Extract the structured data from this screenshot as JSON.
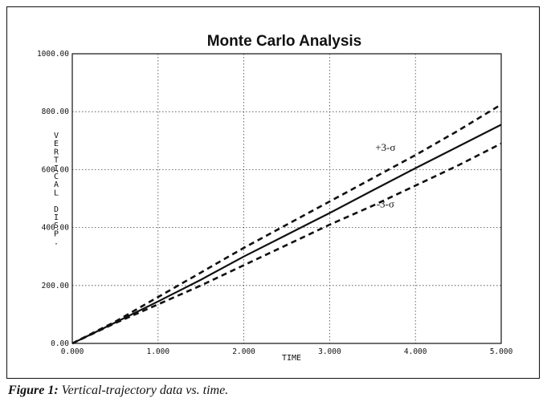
{
  "chart_data": {
    "type": "line",
    "title": "Monte Carlo Analysis",
    "xlabel": "TIME",
    "ylabel": "VERTICAL DISP.",
    "xlim": [
      0,
      5
    ],
    "ylim": [
      0,
      1000
    ],
    "x_ticks": [
      "0.000",
      "1.000",
      "2.000",
      "3.000",
      "4.000",
      "5.000"
    ],
    "y_ticks": [
      "0.00",
      "200.00",
      "400.00",
      "600.00",
      "800.00",
      "1000.00"
    ],
    "grid": true,
    "series": [
      {
        "name": "",
        "style": "solid",
        "x": [
          0,
          0.5,
          1.0,
          1.5,
          2.0,
          2.5,
          3.0,
          3.5,
          4.0,
          4.5,
          5.0
        ],
        "y": [
          0,
          72,
          145,
          220,
          300,
          375,
          450,
          528,
          605,
          680,
          755
        ]
      },
      {
        "name": "",
        "style": "dashed",
        "x": [
          0,
          0.5,
          1.0,
          1.5,
          2.0,
          2.5,
          3.0,
          3.5,
          4.0,
          4.5,
          5.0
        ],
        "y": [
          0,
          75,
          160,
          245,
          330,
          410,
          490,
          570,
          650,
          735,
          825
        ]
      },
      {
        "name": "",
        "style": "dashed",
        "x": [
          0,
          0.5,
          1.0,
          1.5,
          2.0,
          2.5,
          3.0,
          3.5,
          4.0,
          4.5,
          5.0
        ],
        "y": [
          0,
          70,
          135,
          200,
          270,
          340,
          410,
          475,
          545,
          615,
          690
        ]
      }
    ],
    "annotations": [
      {
        "text": "+3-σ",
        "x": 3.65,
        "y": 665
      },
      {
        "text": "-3-σ",
        "x": 3.65,
        "y": 470
      }
    ]
  },
  "caption": {
    "lead": "Figure 1:",
    "text": "Vertical-trajectory data vs. time."
  }
}
